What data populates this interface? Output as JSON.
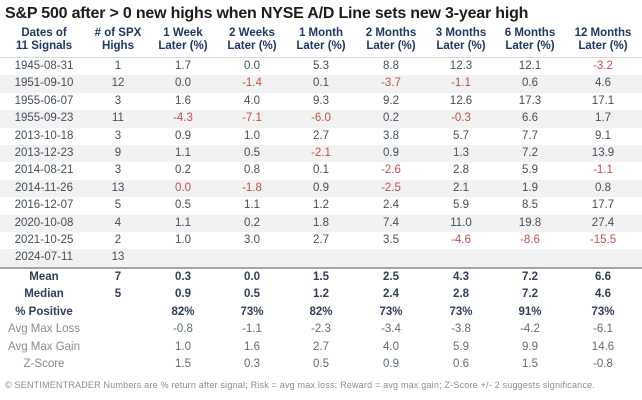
{
  "chart_data": {
    "type": "table",
    "title": "S&P 500 after > 0 new highs when NYSE A/D Line sets new 3-year high",
    "column_headers": [
      {
        "line1": "Dates of",
        "line2": "11 Signals"
      },
      {
        "line1": "# of SPX",
        "line2": "Highs"
      },
      {
        "line1": "1 Week",
        "line2": "Later (%)"
      },
      {
        "line1": "2 Weeks",
        "line2": "Later (%)"
      },
      {
        "line1": "1 Month",
        "line2": "Later (%)"
      },
      {
        "line1": "2 Months",
        "line2": "Later (%)"
      },
      {
        "line1": "3 Months",
        "line2": "Later (%)"
      },
      {
        "line1": "6 Months",
        "line2": "Later (%)"
      },
      {
        "line1": "12 Months",
        "line2": "Later (%)"
      }
    ],
    "signal_rows": [
      {
        "date": "1945-08-31",
        "highs": "1",
        "values": [
          "1.7",
          "0.0",
          "5.3",
          "8.8",
          "12.3",
          "12.1",
          "-3.2"
        ]
      },
      {
        "date": "1951-09-10",
        "highs": "12",
        "values": [
          "0.0",
          "-1.4",
          "0.1",
          "-3.7",
          "-1.1",
          "0.6",
          "4.6"
        ]
      },
      {
        "date": "1955-06-07",
        "highs": "3",
        "values": [
          "1.6",
          "4.0",
          "9.3",
          "9.2",
          "12.6",
          "17.3",
          "17.1"
        ]
      },
      {
        "date": "1955-09-23",
        "highs": "11",
        "values": [
          "-4.3",
          "-7.1",
          "-6.0",
          "0.2",
          "-0.3",
          "6.6",
          "1.7"
        ]
      },
      {
        "date": "2013-10-18",
        "highs": "3",
        "values": [
          "0.9",
          "1.0",
          "2.7",
          "3.8",
          "5.7",
          "7.7",
          "9.1"
        ]
      },
      {
        "date": "2013-12-23",
        "highs": "9",
        "values": [
          "1.1",
          "0.5",
          "-2.1",
          "0.9",
          "1.3",
          "7.2",
          "13.9"
        ]
      },
      {
        "date": "2014-08-21",
        "highs": "3",
        "values": [
          "0.2",
          "0.8",
          "0.1",
          "-2.6",
          "2.8",
          "5.9",
          "-1.1"
        ]
      },
      {
        "date": "2014-11-26",
        "highs": "13",
        "values": [
          "0.0",
          "-1.8",
          "0.9",
          "-2.5",
          "2.1",
          "1.9",
          "0.8"
        ],
        "red_indices": [
          0
        ]
      },
      {
        "date": "2016-12-07",
        "highs": "5",
        "values": [
          "0.5",
          "1.1",
          "1.2",
          "2.4",
          "5.9",
          "8.5",
          "17.7"
        ]
      },
      {
        "date": "2020-10-08",
        "highs": "4",
        "values": [
          "1.1",
          "0.2",
          "1.8",
          "7.4",
          "11.0",
          "19.8",
          "27.4"
        ]
      },
      {
        "date": "2021-10-25",
        "highs": "2",
        "values": [
          "1.0",
          "3.0",
          "2.7",
          "3.5",
          "-4.6",
          "-8.6",
          "-15.5"
        ]
      },
      {
        "date": "2024-07-11",
        "highs": "13",
        "values": [
          "",
          "",
          "",
          "",
          "",
          "",
          ""
        ]
      }
    ],
    "summary_rows": [
      {
        "label": "Mean",
        "highs": "7",
        "values": [
          "0.3",
          "0.0",
          "1.5",
          "2.5",
          "4.3",
          "7.2",
          "6.6"
        ],
        "style": "bold"
      },
      {
        "label": "Median",
        "highs": "5",
        "values": [
          "0.9",
          "0.5",
          "1.2",
          "2.4",
          "2.8",
          "7.2",
          "4.6"
        ],
        "style": "bold"
      },
      {
        "label": "% Positive",
        "highs": "",
        "values": [
          "82%",
          "73%",
          "82%",
          "73%",
          "73%",
          "91%",
          "73%"
        ],
        "style": "bold"
      },
      {
        "label": "Avg Max Loss",
        "highs": "",
        "values": [
          "-0.8",
          "-1.1",
          "-2.3",
          "-3.4",
          "-3.8",
          "-4.2",
          "-6.1"
        ],
        "style": "muted"
      },
      {
        "label": "Avg Max Gain",
        "highs": "",
        "values": [
          "1.0",
          "1.6",
          "2.7",
          "4.0",
          "5.9",
          "9.9",
          "14.6"
        ],
        "style": "muted"
      },
      {
        "label": "Z-Score",
        "highs": "",
        "values": [
          "1.5",
          "0.3",
          "0.5",
          "0.9",
          "0.6",
          "1.5",
          "-0.8"
        ],
        "style": "muted"
      }
    ]
  },
  "footer": "© SENTIMENTRADER  Numbers are % return after signal; Risk = avg max loss; Reward = avg max gain; Z-Score +/- 2 suggests significance.",
  "colors": {
    "header_text": "#1f3864",
    "body_text": "#44505c",
    "bold_text": "#31405a",
    "negative": "#c0504d",
    "muted_label": "#8c8c8c",
    "muted_value": "#5f6b7a",
    "stripe": "#f2f2f3",
    "title_text": "#1c1c1c"
  }
}
